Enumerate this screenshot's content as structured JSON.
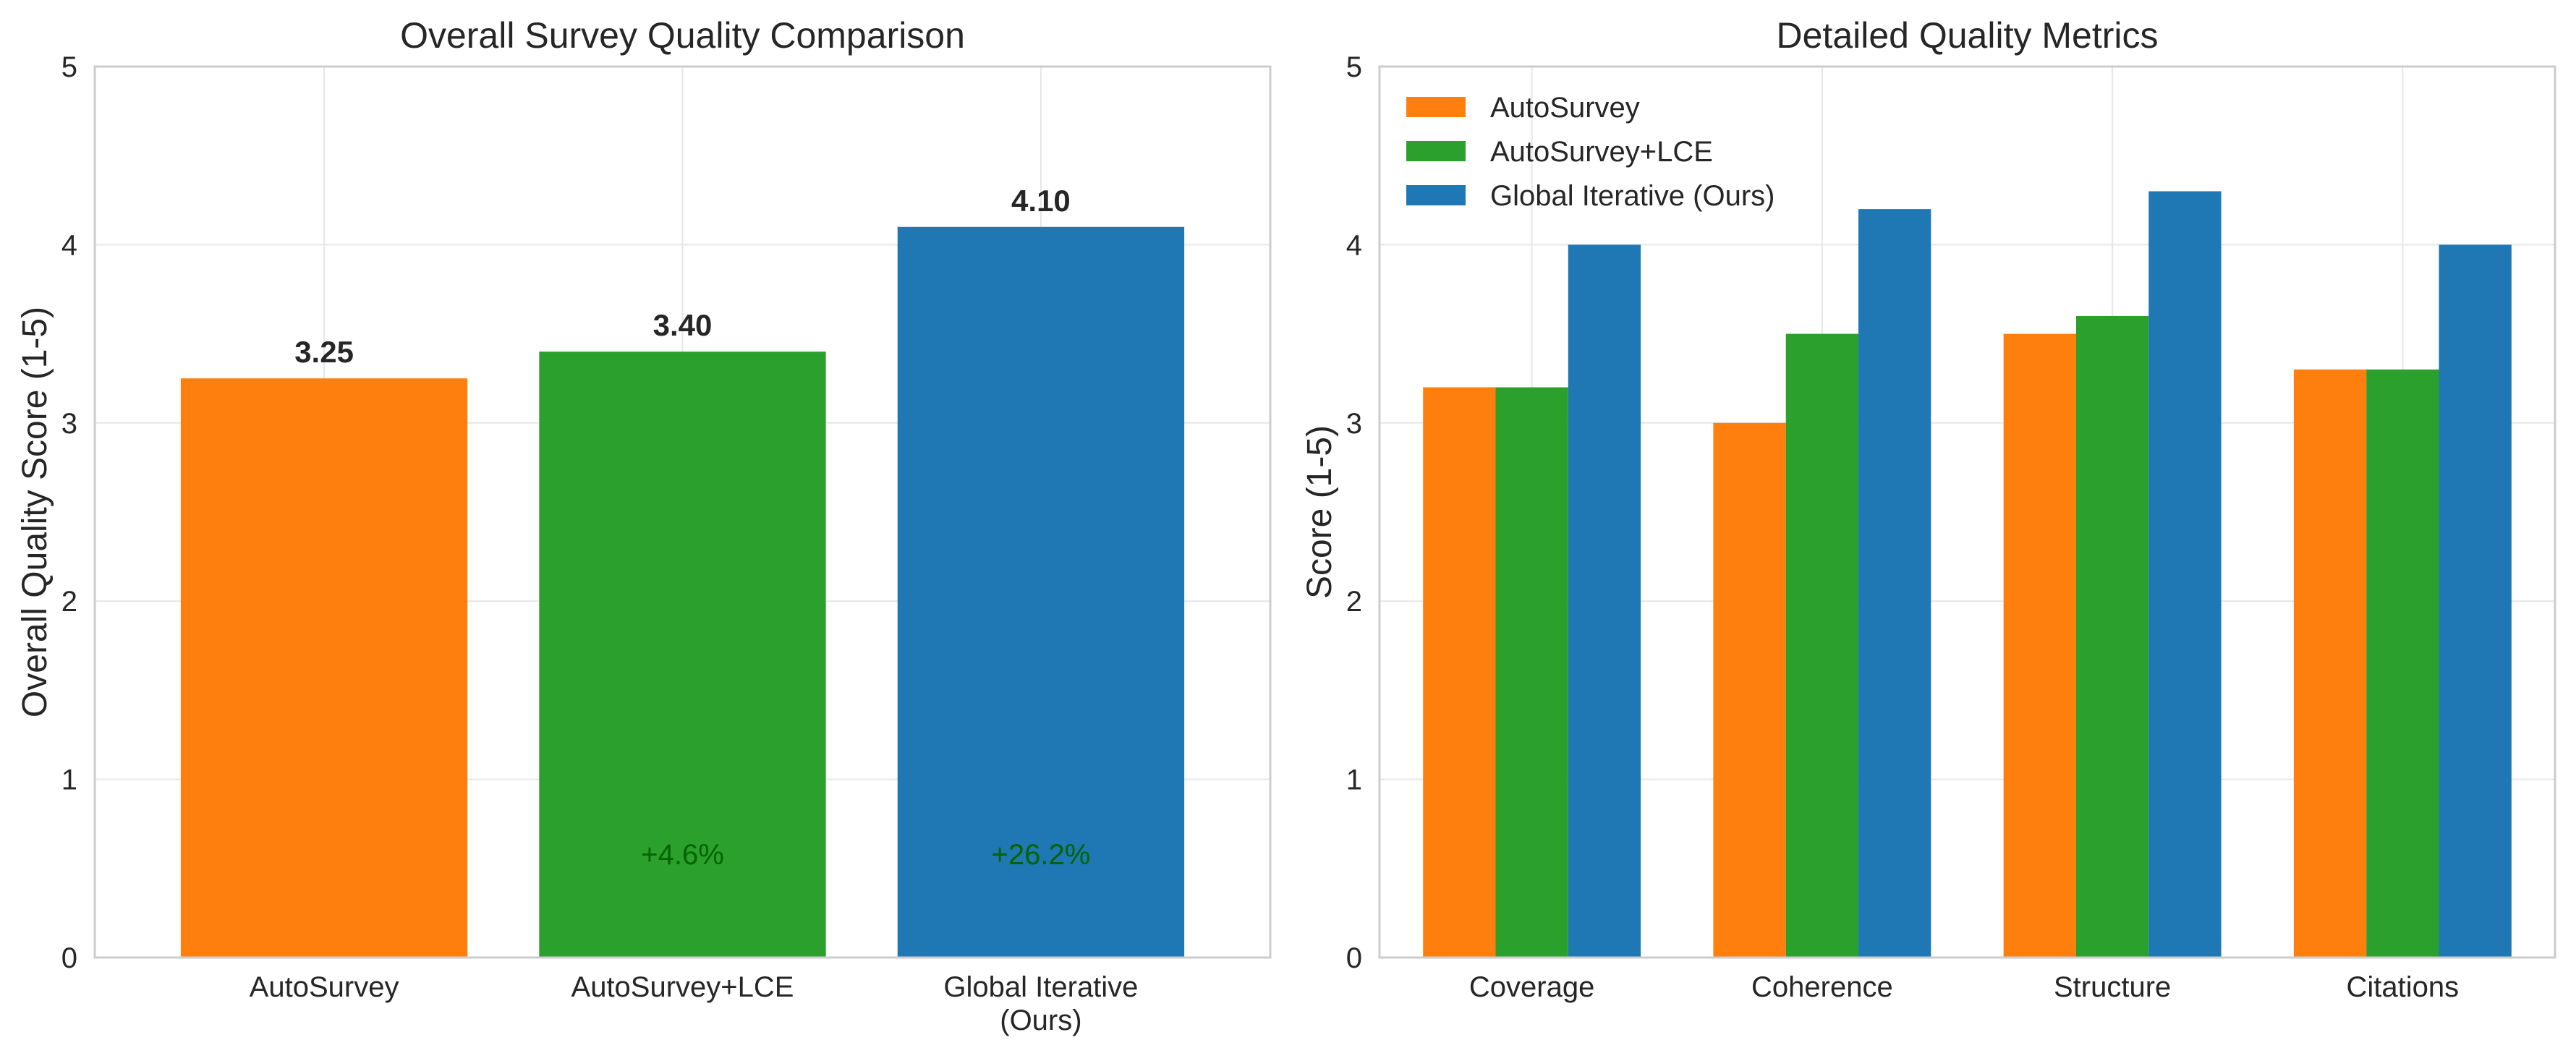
{
  "chart_data": [
    {
      "type": "bar",
      "title": "Overall Survey Quality Comparison",
      "xlabel": "",
      "ylabel": "Overall Quality Score (1-5)",
      "ylim": [
        0,
        5
      ],
      "yticks": [
        0,
        1,
        2,
        3,
        4,
        5
      ],
      "grid": true,
      "categories": [
        "AutoSurvey",
        "AutoSurvey+LCE",
        "Global Iterative\n(Ours)"
      ],
      "values": [
        3.25,
        3.4,
        4.1
      ],
      "value_labels": [
        "3.25",
        "3.40",
        "4.10"
      ],
      "colors": [
        "#ff7f0e",
        "#2ca02c",
        "#1f77b4"
      ],
      "annotations": [
        {
          "category_index": 1,
          "text": "+4.6%",
          "y": 0.58,
          "color": "#006400"
        },
        {
          "category_index": 2,
          "text": "+26.2%",
          "y": 0.58,
          "color": "#006400"
        }
      ]
    },
    {
      "type": "bar",
      "title": "Detailed Quality Metrics",
      "xlabel": "",
      "ylabel": "Score (1-5)",
      "ylim": [
        0,
        5
      ],
      "yticks": [
        0,
        1,
        2,
        3,
        4,
        5
      ],
      "grid": true,
      "legend_position": "top-left",
      "categories": [
        "Coverage",
        "Coherence",
        "Structure",
        "Citations"
      ],
      "series": [
        {
          "name": "AutoSurvey",
          "color": "#ff7f0e",
          "values": [
            3.2,
            3.0,
            3.5,
            3.3
          ]
        },
        {
          "name": "AutoSurvey+LCE",
          "color": "#2ca02c",
          "values": [
            3.2,
            3.5,
            3.6,
            3.3
          ]
        },
        {
          "name": "Global Iterative (Ours)",
          "color": "#1f77b4",
          "values": [
            4.0,
            4.2,
            4.3,
            4.0
          ]
        }
      ]
    }
  ]
}
